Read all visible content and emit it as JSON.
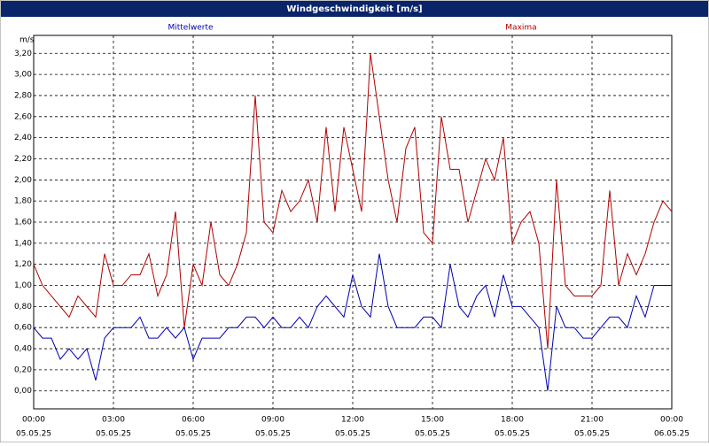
{
  "chart_data": {
    "type": "line",
    "title": "Windgeschwindigkeit [m/s]",
    "y_unit": "m/s",
    "x": [
      0,
      20,
      40,
      60,
      80,
      100,
      120,
      140,
      160,
      180,
      200,
      220,
      240,
      260,
      280,
      300,
      320,
      340,
      360,
      380,
      400,
      420,
      440,
      460,
      480,
      500,
      520,
      540,
      560,
      580,
      600,
      620,
      640,
      660,
      680,
      700,
      720,
      740,
      760,
      780,
      800,
      820,
      840,
      860,
      880,
      900,
      920,
      940,
      960,
      980,
      1000,
      1020,
      1040,
      1060,
      1080,
      1100,
      1120,
      1140,
      1160,
      1180,
      1200,
      1220,
      1240,
      1260,
      1280,
      1300,
      1320,
      1340,
      1360,
      1380,
      1400,
      1420,
      1440
    ],
    "xlim": [
      0,
      1440
    ],
    "xticks": [
      {
        "value": 0,
        "label": "00:00"
      },
      {
        "value": 180,
        "label": "03:00"
      },
      {
        "value": 360,
        "label": "06:00"
      },
      {
        "value": 540,
        "label": "09:00"
      },
      {
        "value": 720,
        "label": "12:00"
      },
      {
        "value": 900,
        "label": "15:00"
      },
      {
        "value": 1080,
        "label": "18:00"
      },
      {
        "value": 1260,
        "label": "21:00"
      },
      {
        "value": 1440,
        "label": "00:00"
      }
    ],
    "xtick_dates": [
      "05.05.25",
      "05.05.25",
      "05.05.25",
      "05.05.25",
      "05.05.25",
      "05.05.25",
      "05.05.25",
      "05.05.25",
      "06.05.25"
    ],
    "ylim": [
      -0.17,
      3.37
    ],
    "yticks": [
      {
        "value": 0,
        "label": "0,00"
      },
      {
        "value": 0.2,
        "label": "0,20"
      },
      {
        "value": 0.4,
        "label": "0,40"
      },
      {
        "value": 0.6,
        "label": "0,60"
      },
      {
        "value": 0.8,
        "label": "0,80"
      },
      {
        "value": 1.0,
        "label": "1,00"
      },
      {
        "value": 1.2,
        "label": "1,20"
      },
      {
        "value": 1.4,
        "label": "1,40"
      },
      {
        "value": 1.6,
        "label": "1,60"
      },
      {
        "value": 1.8,
        "label": "1,80"
      },
      {
        "value": 2.0,
        "label": "2,00"
      },
      {
        "value": 2.2,
        "label": "2,20"
      },
      {
        "value": 2.4,
        "label": "2,40"
      },
      {
        "value": 2.6,
        "label": "2,60"
      },
      {
        "value": 2.8,
        "label": "2,80"
      },
      {
        "value": 3.0,
        "label": "3,00"
      },
      {
        "value": 3.2,
        "label": "3,20"
      }
    ],
    "grid": true,
    "series": [
      {
        "name": "Mittelwerte",
        "color": "#0000b0",
        "values": [
          0.6,
          0.5,
          0.5,
          0.3,
          0.4,
          0.3,
          0.4,
          0.1,
          0.5,
          0.6,
          0.6,
          0.6,
          0.7,
          0.5,
          0.5,
          0.6,
          0.5,
          0.6,
          0.3,
          0.5,
          0.5,
          0.5,
          0.6,
          0.6,
          0.7,
          0.7,
          0.6,
          0.7,
          0.6,
          0.6,
          0.7,
          0.6,
          0.8,
          0.9,
          0.8,
          0.7,
          1.1,
          0.8,
          0.7,
          1.3,
          0.8,
          0.6,
          0.6,
          0.6,
          0.7,
          0.7,
          0.6,
          1.2,
          0.8,
          0.7,
          0.9,
          1.0,
          0.7,
          1.1,
          0.8,
          0.8,
          0.7,
          0.6,
          0.0,
          0.8,
          0.6,
          0.6,
          0.5,
          0.5,
          0.6,
          0.7,
          0.7,
          0.6,
          0.9,
          0.7,
          1.0,
          1.0,
          1.0
        ]
      },
      {
        "name": "Maxima",
        "color": "#b00000",
        "values": [
          1.2,
          1.0,
          0.9,
          0.8,
          0.7,
          0.9,
          0.8,
          0.7,
          1.3,
          1.0,
          1.0,
          1.1,
          1.1,
          1.3,
          0.9,
          1.1,
          1.7,
          0.6,
          1.2,
          1.0,
          1.6,
          1.1,
          1.0,
          1.2,
          1.5,
          2.8,
          1.6,
          1.5,
          1.9,
          1.7,
          1.8,
          2.0,
          1.6,
          2.5,
          1.7,
          2.5,
          2.1,
          1.7,
          3.2,
          2.6,
          2.0,
          1.6,
          2.3,
          2.5,
          1.5,
          1.4,
          2.6,
          2.1,
          2.1,
          1.6,
          1.9,
          2.2,
          2.0,
          2.4,
          1.4,
          1.6,
          1.7,
          1.4,
          0.4,
          2.0,
          1.0,
          0.9,
          0.9,
          0.9,
          1.0,
          1.9,
          1.0,
          1.3,
          1.1,
          1.3,
          1.6,
          1.8,
          1.7
        ]
      }
    ]
  }
}
